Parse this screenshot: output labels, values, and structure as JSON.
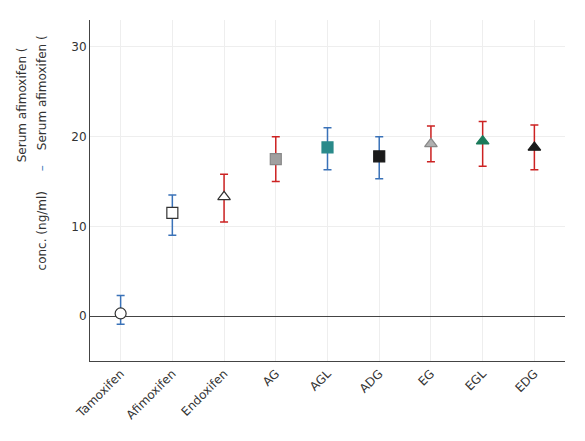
{
  "chart_data": {
    "type": "scatter",
    "categories": [
      "Tamoxifen",
      "Afimoxifen",
      "Endoxifen",
      "AG",
      "AGL",
      "ADG",
      "EG",
      "EGL",
      "EDG"
    ],
    "series": [
      {
        "color": "#3a72b8",
        "values": [
          0.3,
          11.5,
          null,
          null,
          18.8,
          17.8,
          null,
          null,
          null
        ],
        "errors_upper": [
          2.0,
          2.0,
          null,
          null,
          2.2,
          2.2,
          null,
          null,
          null
        ],
        "errors_lower": [
          1.2,
          2.5,
          null,
          null,
          2.5,
          2.5,
          null,
          null,
          null
        ]
      },
      {
        "color": "#cc2222",
        "values": [
          null,
          null,
          13.3,
          17.5,
          null,
          null,
          19.2,
          19.5,
          18.8
        ],
        "errors_upper": [
          null,
          null,
          2.5,
          2.5,
          null,
          null,
          2.0,
          2.2,
          2.5
        ],
        "errors_lower": [
          null,
          null,
          2.8,
          2.5,
          null,
          null,
          2.0,
          2.8,
          2.5
        ]
      }
    ],
    "markers": [
      "circle",
      "square",
      "triangle-up",
      "square",
      "square",
      "square",
      "triangle-up",
      "triangle-up",
      "triangle-up"
    ],
    "colors": [
      "white",
      "white",
      "white",
      "#a0a0a0",
      "#2a8a8a",
      "#1a1a1a",
      "#b0b0b0",
      "#1a7a5a",
      "#1a1a1a"
    ],
    "edge_colors": [
      "#333333",
      "#333333",
      "#333333",
      "#888888",
      "#2a8a8a",
      "#1a1a1a",
      "#888888",
      "#1a7a5a",
      "#1a1a1a"
    ],
    "ylabel": "conc. (ng/ml)",
    "annotations": [
      {
        "text": "Serum afimoxifen ("
      },
      {
        "text": "Serum afimoxifen ("
      },
      {
        "text": "–",
        "color": "#3a72b8"
      }
    ],
    "ylim": [
      -5,
      33
    ],
    "yticks": [
      0,
      10,
      20,
      30
    ],
    "grid": true
  }
}
